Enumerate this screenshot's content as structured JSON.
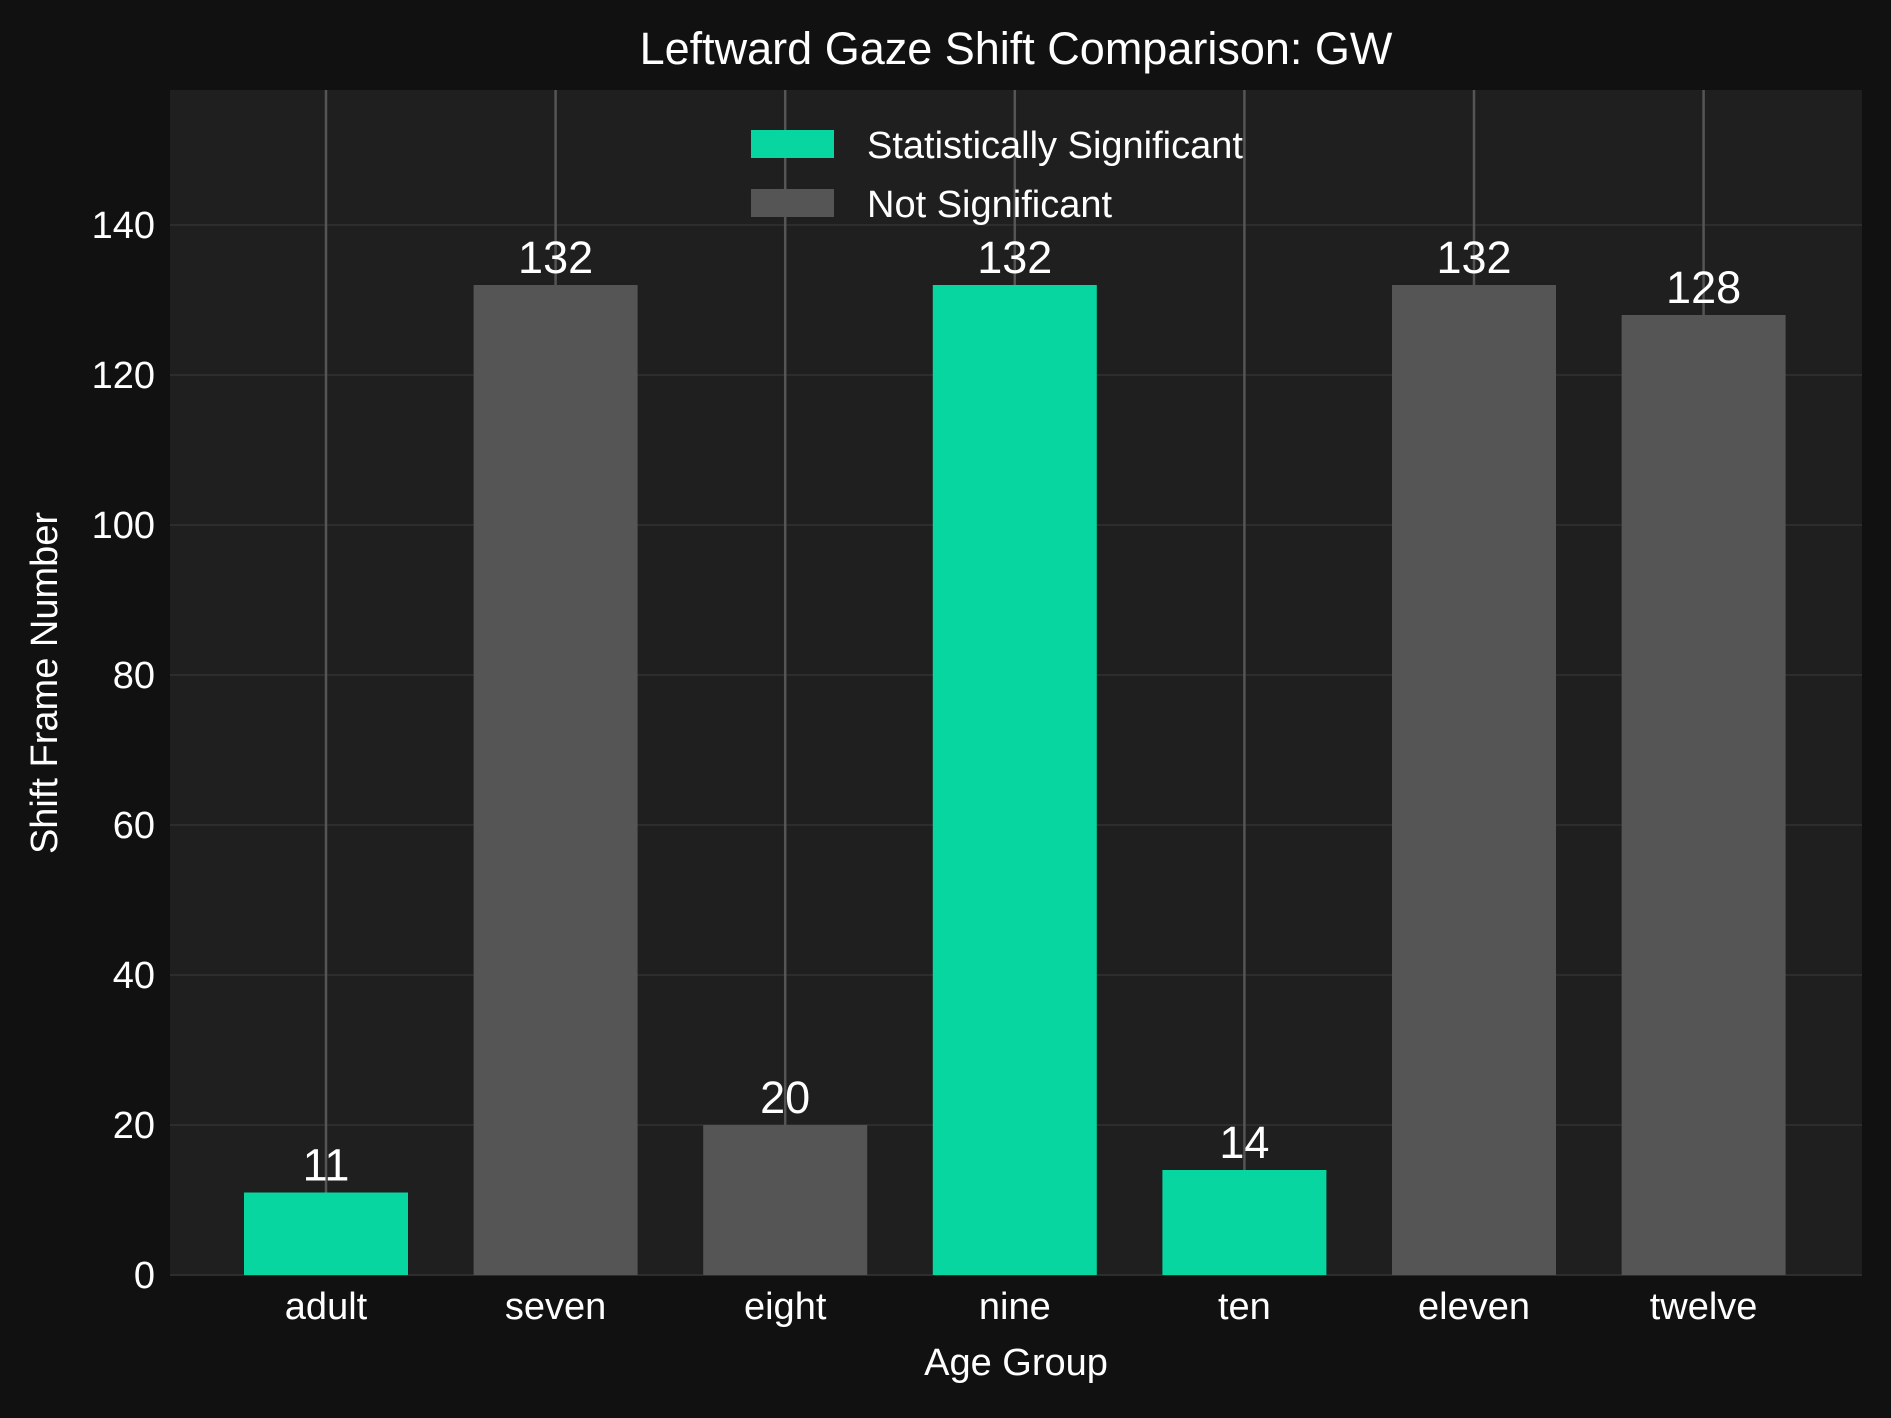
{
  "chart_data": {
    "type": "bar",
    "title": "Leftward Gaze Shift Comparison: GW",
    "xlabel": "Age Group",
    "ylabel": "Shift Frame Number",
    "categories": [
      "adult",
      "seven",
      "eight",
      "nine",
      "ten",
      "eleven",
      "twelve"
    ],
    "values": [
      11,
      132,
      20,
      132,
      14,
      132,
      128
    ],
    "value_labels": [
      "11",
      "132",
      "20",
      "132",
      "14",
      "132",
      "128"
    ],
    "significant": [
      true,
      false,
      false,
      true,
      true,
      false,
      false
    ],
    "ylim": [
      0,
      158
    ],
    "yticks": [
      0,
      20,
      40,
      60,
      80,
      100,
      120,
      140
    ],
    "grid": true,
    "legend": {
      "placement": "top-center",
      "entries": [
        {
          "label": "Statistically Significant",
          "color": "#07d6a0"
        },
        {
          "label": "Not Significant",
          "color": "#555555"
        }
      ]
    },
    "colors": {
      "significant": "#07d6a0",
      "not_significant": "#555555",
      "figure_background": "#111111",
      "axes_background": "#1f1f1f",
      "grid": "#2d2d2d",
      "vertical_lines": "#555555",
      "text": "#ffffff"
    }
  }
}
